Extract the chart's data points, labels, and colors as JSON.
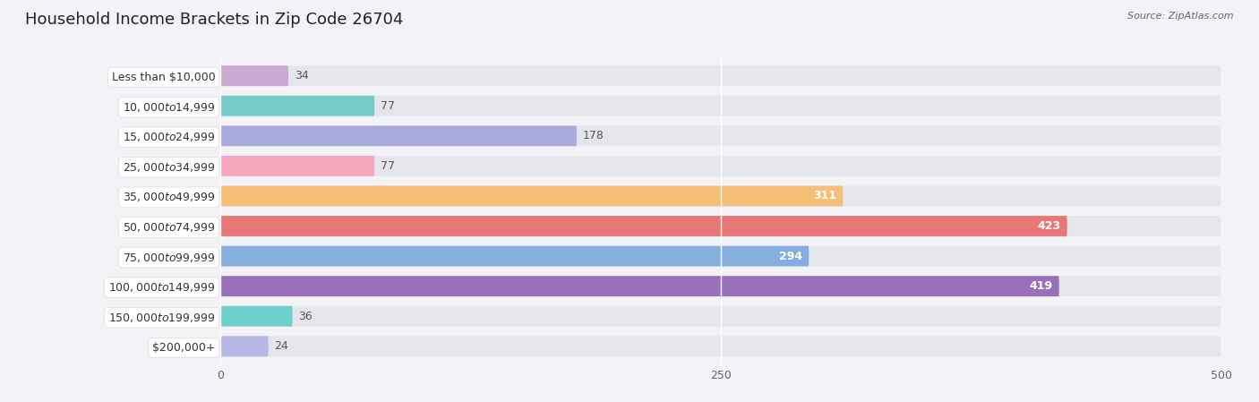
{
  "title": "Household Income Brackets in Zip Code 26704",
  "source": "Source: ZipAtlas.com",
  "categories": [
    "Less than $10,000",
    "$10,000 to $14,999",
    "$15,000 to $24,999",
    "$25,000 to $34,999",
    "$35,000 to $49,999",
    "$50,000 to $74,999",
    "$75,000 to $99,999",
    "$100,000 to $149,999",
    "$150,000 to $199,999",
    "$200,000+"
  ],
  "values": [
    34,
    77,
    178,
    77,
    311,
    423,
    294,
    419,
    36,
    24
  ],
  "colors": [
    "#c9a8d4",
    "#78cdc8",
    "#aaaade",
    "#f5a8be",
    "#f5bf78",
    "#e87878",
    "#85aedf",
    "#9870bc",
    "#6ecfcb",
    "#b8b8e8"
  ],
  "xlim": [
    0,
    500
  ],
  "xticks": [
    0,
    250,
    500
  ],
  "bg_color": "#f2f2f7",
  "bar_bg_color": "#e5e5ec",
  "label_bg_color": "#ffffff",
  "title_fontsize": 13,
  "label_fontsize": 9,
  "value_fontsize": 9,
  "bar_height": 0.68,
  "value_threshold": 200
}
